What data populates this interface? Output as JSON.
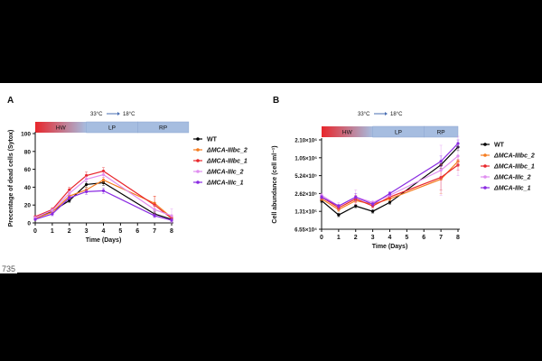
{
  "page": {
    "line_number": "735"
  },
  "chart_data": [
    {
      "panel_label": "A",
      "type": "line",
      "title": "",
      "xlabel": "Time (Days)",
      "ylabel": "Precentage of dead cells (Sytox)",
      "xlim": [
        0,
        8
      ],
      "ylim": [
        0,
        100
      ],
      "x_ticks": [
        "0",
        "1",
        "2",
        "3",
        "4",
        "5",
        "6",
        "7",
        "8"
      ],
      "y_ticks": [
        "0",
        "20",
        "40",
        "60",
        "80",
        "100"
      ],
      "y_tick_values": [
        0,
        20,
        40,
        60,
        80,
        100
      ],
      "temperature_label_from": "33°C",
      "temperature_label_to": "18°C",
      "phases": [
        {
          "name": "HW",
          "start": 0,
          "end": 3,
          "color": "#e8262b"
        },
        {
          "name": "LP",
          "start": 3,
          "end": 6,
          "color": "#a6bde0"
        },
        {
          "name": "RP",
          "start": 6,
          "end": 9,
          "color": "#a6bde0"
        }
      ],
      "x": [
        0,
        1,
        2,
        3,
        4,
        7,
        8
      ],
      "series": [
        {
          "name": "WT",
          "color": "#000000",
          "values": [
            6,
            13,
            25,
            43,
            45,
            10,
            4
          ],
          "err": [
            1,
            2,
            2,
            3,
            3,
            3,
            2
          ]
        },
        {
          "name": "ΔMCA-IIIbc_2",
          "color": "#f57c1f",
          "values": [
            5,
            12,
            30,
            37,
            48,
            22,
            6
          ],
          "err": [
            1,
            2,
            2,
            3,
            3,
            8,
            3
          ]
        },
        {
          "name": "ΔMCA-IIIbc_1",
          "color": "#e8262b",
          "values": [
            7,
            15,
            37,
            53,
            58,
            20,
            5
          ],
          "err": [
            1,
            2,
            3,
            4,
            4,
            10,
            3
          ]
        },
        {
          "name": "ΔMCA-IIIc_2",
          "color": "#e08ef0",
          "values": [
            6,
            14,
            33,
            49,
            54,
            15,
            8
          ],
          "err": [
            1,
            2,
            3,
            3,
            3,
            5,
            8
          ]
        },
        {
          "name": "ΔMCA-IIIc_1",
          "color": "#8a2be2",
          "values": [
            4,
            10,
            28,
            35,
            36,
            8,
            3
          ],
          "err": [
            1,
            2,
            2,
            3,
            3,
            2,
            2
          ]
        }
      ]
    },
    {
      "panel_label": "B",
      "type": "line",
      "title": "",
      "xlabel": "Time (Days)",
      "ylabel": "Cell abundance (cell ml⁻¹)",
      "xlim": [
        0,
        8
      ],
      "ylim": [
        0,
        5
      ],
      "y_scale": "log2",
      "x_ticks": [
        "0",
        "1",
        "2",
        "3",
        "4",
        "5",
        "6",
        "7",
        "8"
      ],
      "y_ticks": [
        "6.55×10⁴",
        "1.31×10⁵",
        "2.62×10⁵",
        "5.24×10⁵",
        "1.05×10⁶",
        "2.10×10⁶"
      ],
      "y_tick_values": [
        0,
        1,
        2,
        3,
        4,
        5
      ],
      "temperature_label_from": "33°C",
      "temperature_label_to": "18°C",
      "phases": [
        {
          "name": "HW",
          "start": 0,
          "end": 3,
          "color": "#e8262b"
        },
        {
          "name": "LP",
          "start": 3,
          "end": 6,
          "color": "#a6bde0"
        },
        {
          "name": "RP",
          "start": 6,
          "end": 8,
          "color": "#a6bde0"
        }
      ],
      "x": [
        0,
        1,
        2,
        3,
        4,
        7,
        8
      ],
      "series": [
        {
          "name": "WT",
          "color": "#000000",
          "values": [
            1.6,
            0.8,
            1.3,
            1.0,
            1.5,
            3.6,
            4.6
          ],
          "err": [
            0.1,
            0.1,
            0.1,
            0.1,
            0.1,
            0.2,
            0.2
          ]
        },
        {
          "name": "ΔMCA-IIIbc_2",
          "color": "#f57c1f",
          "values": [
            1.7,
            1.1,
            1.6,
            1.4,
            1.7,
            2.8,
            3.8
          ],
          "err": [
            0.1,
            0.1,
            0.2,
            0.1,
            0.1,
            0.8,
            0.3
          ]
        },
        {
          "name": "ΔMCA-IIIbc_1",
          "color": "#e8262b",
          "values": [
            1.8,
            1.2,
            1.7,
            1.3,
            1.8,
            2.9,
            3.6
          ],
          "err": [
            0.1,
            0.1,
            0.2,
            0.1,
            0.1,
            0.7,
            0.3
          ]
        },
        {
          "name": "ΔMCA-IIIc_2",
          "color": "#e08ef0",
          "values": [
            1.9,
            1.3,
            1.8,
            1.5,
            1.9,
            3.3,
            4.1
          ],
          "err": [
            0.1,
            0.2,
            0.4,
            0.1,
            0.1,
            1.4,
            1.1
          ]
        },
        {
          "name": "ΔMCA-IIIc_1",
          "color": "#8a2be2",
          "values": [
            1.8,
            1.3,
            1.8,
            1.4,
            2.0,
            3.8,
            4.8
          ],
          "err": [
            0.1,
            0.1,
            0.2,
            0.1,
            0.1,
            0.3,
            0.2
          ]
        }
      ]
    }
  ]
}
